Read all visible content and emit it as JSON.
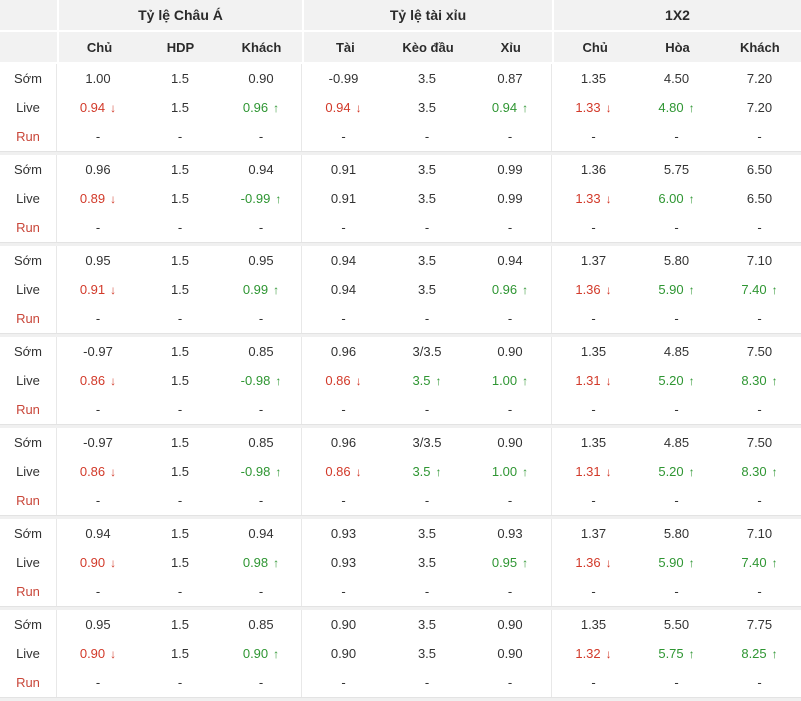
{
  "colors": {
    "down_red": "#d23a2a",
    "up_green": "#2f9633",
    "run_red": "#c9473a",
    "header_bg": "#f2f2f2",
    "text": "#333333",
    "border": "#e8e8e8",
    "separator": "#f0f0f0"
  },
  "icons": {
    "up_arrow": "↑",
    "down_arrow": "↓"
  },
  "header": {
    "groups": [
      {
        "title": "Tỷ lệ Châu Á",
        "columns": [
          "Chủ",
          "HDP",
          "Khách"
        ]
      },
      {
        "title": "Tỷ lệ tài xỉu",
        "columns": [
          "Tài",
          "Kèo đầu",
          "Xỉu"
        ]
      },
      {
        "title": "1X2",
        "columns": [
          "Chủ",
          "Hòa",
          "Khách"
        ]
      }
    ]
  },
  "groups": [
    {
      "rows": [
        {
          "label": "Sớm",
          "kind": "early",
          "cells": [
            {
              "v": "1.00"
            },
            {
              "v": "1.5"
            },
            {
              "v": "0.90"
            },
            {
              "v": "-0.99"
            },
            {
              "v": "3.5"
            },
            {
              "v": "0.87"
            },
            {
              "v": "1.35"
            },
            {
              "v": "4.50"
            },
            {
              "v": "7.20"
            }
          ]
        },
        {
          "label": "Live",
          "kind": "live",
          "cells": [
            {
              "v": "0.94",
              "trend": "down"
            },
            {
              "v": "1.5"
            },
            {
              "v": "0.96",
              "trend": "up"
            },
            {
              "v": "0.94",
              "trend": "down"
            },
            {
              "v": "3.5"
            },
            {
              "v": "0.94",
              "trend": "up"
            },
            {
              "v": "1.33",
              "trend": "down"
            },
            {
              "v": "4.80",
              "trend": "up"
            },
            {
              "v": "7.20"
            }
          ]
        },
        {
          "label": "Run",
          "kind": "run",
          "cells": [
            {
              "v": "-"
            },
            {
              "v": "-"
            },
            {
              "v": "-"
            },
            {
              "v": "-"
            },
            {
              "v": "-"
            },
            {
              "v": "-"
            },
            {
              "v": "-"
            },
            {
              "v": "-"
            },
            {
              "v": "-"
            }
          ]
        }
      ]
    },
    {
      "rows": [
        {
          "label": "Sớm",
          "kind": "early",
          "cells": [
            {
              "v": "0.96"
            },
            {
              "v": "1.5"
            },
            {
              "v": "0.94"
            },
            {
              "v": "0.91"
            },
            {
              "v": "3.5"
            },
            {
              "v": "0.99"
            },
            {
              "v": "1.36"
            },
            {
              "v": "5.75"
            },
            {
              "v": "6.50"
            }
          ]
        },
        {
          "label": "Live",
          "kind": "live",
          "cells": [
            {
              "v": "0.89",
              "trend": "down"
            },
            {
              "v": "1.5"
            },
            {
              "v": "-0.99",
              "trend": "up"
            },
            {
              "v": "0.91"
            },
            {
              "v": "3.5"
            },
            {
              "v": "0.99"
            },
            {
              "v": "1.33",
              "trend": "down"
            },
            {
              "v": "6.00",
              "trend": "up"
            },
            {
              "v": "6.50"
            }
          ]
        },
        {
          "label": "Run",
          "kind": "run",
          "cells": [
            {
              "v": "-"
            },
            {
              "v": "-"
            },
            {
              "v": "-"
            },
            {
              "v": "-"
            },
            {
              "v": "-"
            },
            {
              "v": "-"
            },
            {
              "v": "-"
            },
            {
              "v": "-"
            },
            {
              "v": "-"
            }
          ]
        }
      ]
    },
    {
      "rows": [
        {
          "label": "Sớm",
          "kind": "early",
          "cells": [
            {
              "v": "0.95"
            },
            {
              "v": "1.5"
            },
            {
              "v": "0.95"
            },
            {
              "v": "0.94"
            },
            {
              "v": "3.5"
            },
            {
              "v": "0.94"
            },
            {
              "v": "1.37"
            },
            {
              "v": "5.80"
            },
            {
              "v": "7.10"
            }
          ]
        },
        {
          "label": "Live",
          "kind": "live",
          "cells": [
            {
              "v": "0.91",
              "trend": "down"
            },
            {
              "v": "1.5"
            },
            {
              "v": "0.99",
              "trend": "up"
            },
            {
              "v": "0.94"
            },
            {
              "v": "3.5"
            },
            {
              "v": "0.96",
              "trend": "up"
            },
            {
              "v": "1.36",
              "trend": "down"
            },
            {
              "v": "5.90",
              "trend": "up"
            },
            {
              "v": "7.40",
              "trend": "up"
            }
          ]
        },
        {
          "label": "Run",
          "kind": "run",
          "cells": [
            {
              "v": "-"
            },
            {
              "v": "-"
            },
            {
              "v": "-"
            },
            {
              "v": "-"
            },
            {
              "v": "-"
            },
            {
              "v": "-"
            },
            {
              "v": "-"
            },
            {
              "v": "-"
            },
            {
              "v": "-"
            }
          ]
        }
      ]
    },
    {
      "rows": [
        {
          "label": "Sớm",
          "kind": "early",
          "cells": [
            {
              "v": "-0.97"
            },
            {
              "v": "1.5"
            },
            {
              "v": "0.85"
            },
            {
              "v": "0.96"
            },
            {
              "v": "3/3.5"
            },
            {
              "v": "0.90"
            },
            {
              "v": "1.35"
            },
            {
              "v": "4.85"
            },
            {
              "v": "7.50"
            }
          ]
        },
        {
          "label": "Live",
          "kind": "live",
          "cells": [
            {
              "v": "0.86",
              "trend": "down"
            },
            {
              "v": "1.5"
            },
            {
              "v": "-0.98",
              "trend": "up"
            },
            {
              "v": "0.86",
              "trend": "down"
            },
            {
              "v": "3.5",
              "trend": "up"
            },
            {
              "v": "1.00",
              "trend": "up"
            },
            {
              "v": "1.31",
              "trend": "down"
            },
            {
              "v": "5.20",
              "trend": "up"
            },
            {
              "v": "8.30",
              "trend": "up"
            }
          ]
        },
        {
          "label": "Run",
          "kind": "run",
          "cells": [
            {
              "v": "-"
            },
            {
              "v": "-"
            },
            {
              "v": "-"
            },
            {
              "v": "-"
            },
            {
              "v": "-"
            },
            {
              "v": "-"
            },
            {
              "v": "-"
            },
            {
              "v": "-"
            },
            {
              "v": "-"
            }
          ]
        }
      ]
    },
    {
      "rows": [
        {
          "label": "Sớm",
          "kind": "early",
          "cells": [
            {
              "v": "-0.97"
            },
            {
              "v": "1.5"
            },
            {
              "v": "0.85"
            },
            {
              "v": "0.96"
            },
            {
              "v": "3/3.5"
            },
            {
              "v": "0.90"
            },
            {
              "v": "1.35"
            },
            {
              "v": "4.85"
            },
            {
              "v": "7.50"
            }
          ]
        },
        {
          "label": "Live",
          "kind": "live",
          "cells": [
            {
              "v": "0.86",
              "trend": "down"
            },
            {
              "v": "1.5"
            },
            {
              "v": "-0.98",
              "trend": "up"
            },
            {
              "v": "0.86",
              "trend": "down"
            },
            {
              "v": "3.5",
              "trend": "up"
            },
            {
              "v": "1.00",
              "trend": "up"
            },
            {
              "v": "1.31",
              "trend": "down"
            },
            {
              "v": "5.20",
              "trend": "up"
            },
            {
              "v": "8.30",
              "trend": "up"
            }
          ]
        },
        {
          "label": "Run",
          "kind": "run",
          "cells": [
            {
              "v": "-"
            },
            {
              "v": "-"
            },
            {
              "v": "-"
            },
            {
              "v": "-"
            },
            {
              "v": "-"
            },
            {
              "v": "-"
            },
            {
              "v": "-"
            },
            {
              "v": "-"
            },
            {
              "v": "-"
            }
          ]
        }
      ]
    },
    {
      "rows": [
        {
          "label": "Sớm",
          "kind": "early",
          "cells": [
            {
              "v": "0.94"
            },
            {
              "v": "1.5"
            },
            {
              "v": "0.94"
            },
            {
              "v": "0.93"
            },
            {
              "v": "3.5"
            },
            {
              "v": "0.93"
            },
            {
              "v": "1.37"
            },
            {
              "v": "5.80"
            },
            {
              "v": "7.10"
            }
          ]
        },
        {
          "label": "Live",
          "kind": "live",
          "cells": [
            {
              "v": "0.90",
              "trend": "down"
            },
            {
              "v": "1.5"
            },
            {
              "v": "0.98",
              "trend": "up"
            },
            {
              "v": "0.93"
            },
            {
              "v": "3.5"
            },
            {
              "v": "0.95",
              "trend": "up"
            },
            {
              "v": "1.36",
              "trend": "down"
            },
            {
              "v": "5.90",
              "trend": "up"
            },
            {
              "v": "7.40",
              "trend": "up"
            }
          ]
        },
        {
          "label": "Run",
          "kind": "run",
          "cells": [
            {
              "v": "-"
            },
            {
              "v": "-"
            },
            {
              "v": "-"
            },
            {
              "v": "-"
            },
            {
              "v": "-"
            },
            {
              "v": "-"
            },
            {
              "v": "-"
            },
            {
              "v": "-"
            },
            {
              "v": "-"
            }
          ]
        }
      ]
    },
    {
      "rows": [
        {
          "label": "Sớm",
          "kind": "early",
          "cells": [
            {
              "v": "0.95"
            },
            {
              "v": "1.5"
            },
            {
              "v": "0.85"
            },
            {
              "v": "0.90"
            },
            {
              "v": "3.5"
            },
            {
              "v": "0.90"
            },
            {
              "v": "1.35"
            },
            {
              "v": "5.50"
            },
            {
              "v": "7.75"
            }
          ]
        },
        {
          "label": "Live",
          "kind": "live",
          "cells": [
            {
              "v": "0.90",
              "trend": "down"
            },
            {
              "v": "1.5"
            },
            {
              "v": "0.90",
              "trend": "up"
            },
            {
              "v": "0.90"
            },
            {
              "v": "3.5"
            },
            {
              "v": "0.90"
            },
            {
              "v": "1.32",
              "trend": "down"
            },
            {
              "v": "5.75",
              "trend": "up"
            },
            {
              "v": "8.25",
              "trend": "up"
            }
          ]
        },
        {
          "label": "Run",
          "kind": "run",
          "cells": [
            {
              "v": "-"
            },
            {
              "v": "-"
            },
            {
              "v": "-"
            },
            {
              "v": "-"
            },
            {
              "v": "-"
            },
            {
              "v": "-"
            },
            {
              "v": "-"
            },
            {
              "v": "-"
            },
            {
              "v": "-"
            }
          ]
        }
      ]
    }
  ]
}
